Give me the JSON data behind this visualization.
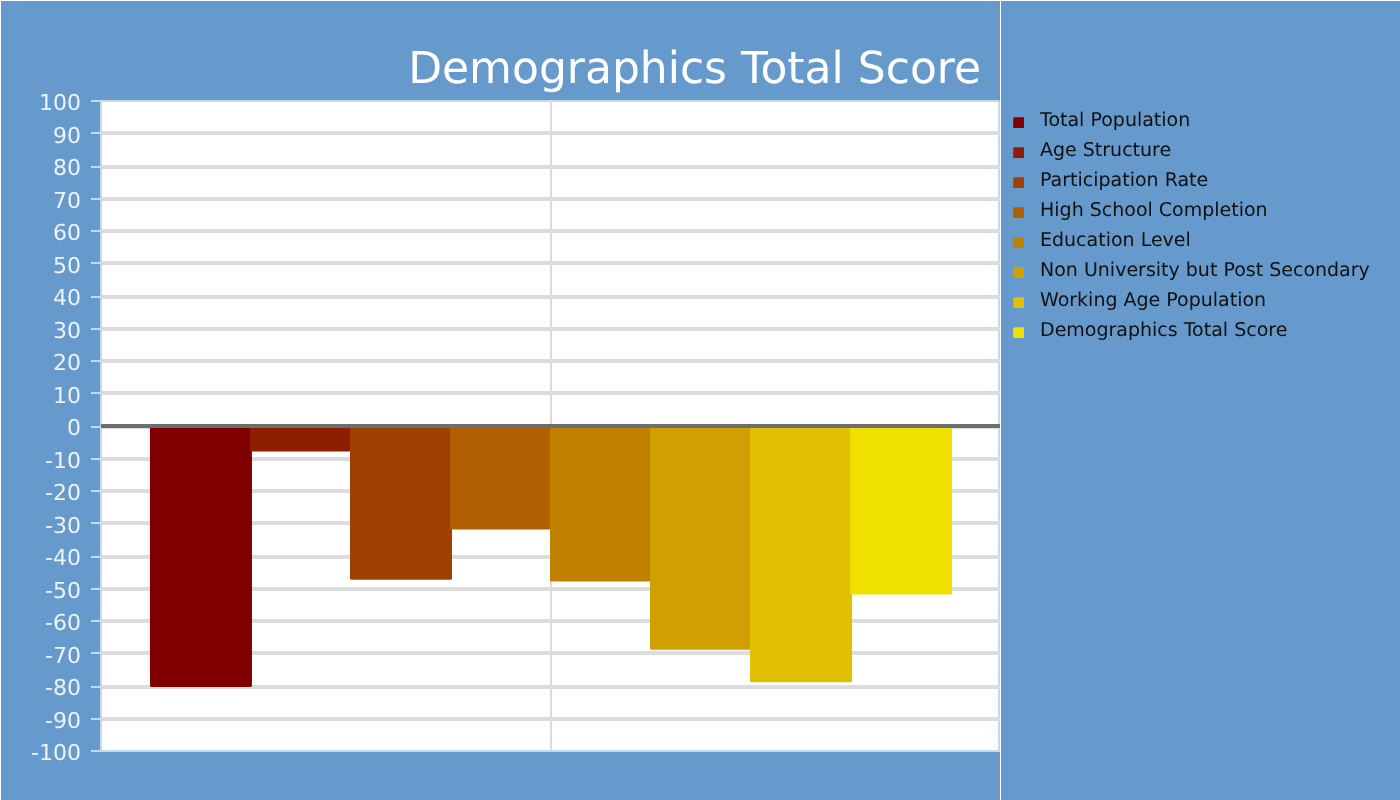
{
  "chart_data": {
    "type": "bar",
    "title": "Demographics Total Score",
    "categories": [
      null
    ],
    "series": [
      {
        "name": "Total Population",
        "color": "#800000",
        "values": [
          -80
        ]
      },
      {
        "name": "Age Structure",
        "color": "#8e1e00",
        "values": [
          -7.5
        ]
      },
      {
        "name": "Participation Rate",
        "color": "#a04000",
        "values": [
          -47
        ]
      },
      {
        "name": "High School Completion",
        "color": "#b06000",
        "values": [
          -31.5
        ]
      },
      {
        "name": "Education Level",
        "color": "#c08000",
        "values": [
          -47.5
        ]
      },
      {
        "name": "Non University but Post Secondary",
        "color": "#d0a000",
        "values": [
          -68.5
        ]
      },
      {
        "name": "Working Age Population",
        "color": "#e0c000",
        "values": [
          -78.5
        ]
      },
      {
        "name": "Demographics Total Score",
        "color": "#f0e000",
        "values": [
          -51.5
        ]
      }
    ],
    "ylim": [
      -100,
      100
    ],
    "yticks": [
      -100,
      -90,
      -80,
      -70,
      -60,
      -50,
      -40,
      -30,
      -20,
      -10,
      0,
      10,
      20,
      30,
      40,
      50,
      60,
      70,
      80,
      90,
      100
    ],
    "grid": true,
    "legend": "right",
    "tick_labels": "y"
  }
}
